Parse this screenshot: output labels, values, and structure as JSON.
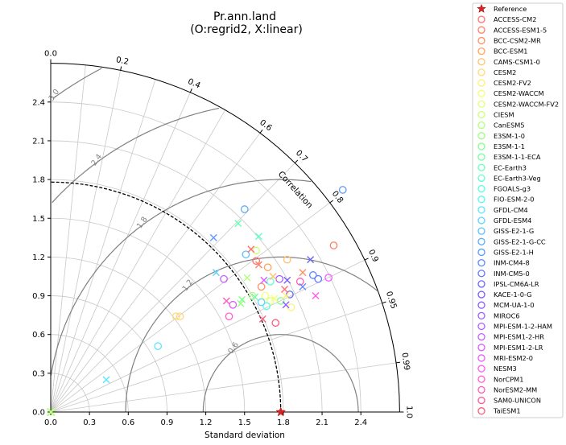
{
  "chart_data": {
    "type": "scatter",
    "subtype": "taylor-diagram",
    "title": "Pr.ann.land",
    "subtitle": "(O:regrid2, X:linear)",
    "xlabel": "Standard deviation",
    "angular_label": "Correlation",
    "xlim": [
      0,
      2.7
    ],
    "xticks": [
      "0.0",
      "0.3",
      "0.6",
      "0.9",
      "1.2",
      "1.5",
      "1.8",
      "2.1",
      "2.4"
    ],
    "yticks": [
      "0.0",
      "0.3",
      "0.6",
      "0.9",
      "1.2",
      "1.5",
      "1.8",
      "2.1",
      "2.4"
    ],
    "correlation_ticks": [
      0.0,
      0.2,
      0.4,
      0.6,
      0.7,
      0.8,
      0.9,
      0.95,
      0.99,
      1.0
    ],
    "correlation_tick_labels": [
      "0.0",
      "0.2",
      "0.4",
      "0.6",
      "0.7",
      "0.8",
      "0.9",
      "0.95",
      "0.99",
      "1.0"
    ],
    "reference_std": 1.78,
    "rms_contours": [
      0.6,
      1.2,
      1.8,
      2.4,
      3.0
    ],
    "rms_labels": [
      "0.6",
      "1.2",
      "1.8",
      "2.4",
      "3.0"
    ],
    "grid": true,
    "legend_position": "right",
    "legend": [
      {
        "name": "Reference",
        "color": "#d62728",
        "marker": "star"
      },
      {
        "name": "ACCESS-CM2",
        "color": "#ff6f6f",
        "marker": "circle"
      },
      {
        "name": "ACCESS-ESM1-5",
        "color": "#ff7f66",
        "marker": "circle"
      },
      {
        "name": "BCC-CSM2-MR",
        "color": "#ff9060",
        "marker": "circle"
      },
      {
        "name": "BCC-ESM1",
        "color": "#ffa45c",
        "marker": "circle"
      },
      {
        "name": "CAMS-CSM1-0",
        "color": "#ffc070",
        "marker": "circle"
      },
      {
        "name": "CESM2",
        "color": "#ffd97a",
        "marker": "circle"
      },
      {
        "name": "CESM2-FV2",
        "color": "#fff07a",
        "marker": "circle"
      },
      {
        "name": "CESM2-WACCM",
        "color": "#f3ff78",
        "marker": "circle"
      },
      {
        "name": "CESM2-WACCM-FV2",
        "color": "#e0ff78",
        "marker": "circle"
      },
      {
        "name": "CIESM",
        "color": "#c9ff78",
        "marker": "circle"
      },
      {
        "name": "CanESM5",
        "color": "#b0ff7a",
        "marker": "circle"
      },
      {
        "name": "E3SM-1-0",
        "color": "#98ff80",
        "marker": "circle"
      },
      {
        "name": "E3SM-1-1",
        "color": "#84ff8a",
        "marker": "circle"
      },
      {
        "name": "E3SM-1-1-ECA",
        "color": "#74ffa0",
        "marker": "circle"
      },
      {
        "name": "EC-Earth3",
        "color": "#68ffb6",
        "marker": "circle"
      },
      {
        "name": "EC-Earth3-Veg",
        "color": "#60ffcc",
        "marker": "circle"
      },
      {
        "name": "FGOALS-g3",
        "color": "#5cffe0",
        "marker": "circle"
      },
      {
        "name": "FIO-ESM-2-0",
        "color": "#5cf5f0",
        "marker": "circle"
      },
      {
        "name": "GFDL-CM4",
        "color": "#5ce6ff",
        "marker": "circle"
      },
      {
        "name": "GFDL-ESM4",
        "color": "#5cd3ff",
        "marker": "circle"
      },
      {
        "name": "GISS-E2-1-G",
        "color": "#5cc0ff",
        "marker": "circle"
      },
      {
        "name": "GISS-E2-1-G-CC",
        "color": "#5cadff",
        "marker": "circle"
      },
      {
        "name": "GISS-E2-1-H",
        "color": "#5c9aff",
        "marker": "circle"
      },
      {
        "name": "INM-CM4-8",
        "color": "#5c88ff",
        "marker": "circle"
      },
      {
        "name": "INM-CM5-0",
        "color": "#5c76ff",
        "marker": "circle"
      },
      {
        "name": "IPSL-CM6A-LR",
        "color": "#6666ff",
        "marker": "circle"
      },
      {
        "name": "KACE-1-0-G",
        "color": "#7a5cff",
        "marker": "circle"
      },
      {
        "name": "MCM-UA-1-0",
        "color": "#8c5cff",
        "marker": "circle"
      },
      {
        "name": "MIROC6",
        "color": "#a05cff",
        "marker": "circle"
      },
      {
        "name": "MPI-ESM-1-2-HAM",
        "color": "#b45cff",
        "marker": "circle"
      },
      {
        "name": "MPI-ESM1-2-HR",
        "color": "#c85cff",
        "marker": "circle"
      },
      {
        "name": "MPI-ESM1-2-LR",
        "color": "#dc5cff",
        "marker": "circle"
      },
      {
        "name": "MRI-ESM2-0",
        "color": "#ee5cff",
        "marker": "circle"
      },
      {
        "name": "NESM3",
        "color": "#ff5cf0",
        "marker": "circle"
      },
      {
        "name": "NorCPM1",
        "color": "#ff5cd6",
        "marker": "circle"
      },
      {
        "name": "NorESM2-MM",
        "color": "#ff5cb8",
        "marker": "circle"
      },
      {
        "name": "SAM0-UNICON",
        "color": "#ff5c98",
        "marker": "circle"
      },
      {
        "name": "TaiESM1",
        "color": "#ff5c7a",
        "marker": "circle"
      }
    ],
    "points_circle": [
      {
        "x": 1.59,
        "y": 1.17,
        "c": "#ff6f6f"
      },
      {
        "x": 2.19,
        "y": 1.29,
        "c": "#ff7f66"
      },
      {
        "x": 1.63,
        "y": 0.97,
        "c": "#ff9060"
      },
      {
        "x": 1.68,
        "y": 1.12,
        "c": "#ffa45c"
      },
      {
        "x": 1.83,
        "y": 1.18,
        "c": "#ffc070"
      },
      {
        "x": 0.97,
        "y": 0.74,
        "c": "#ffd97a"
      },
      {
        "x": 1.0,
        "y": 0.74,
        "c": "#ffd97a"
      },
      {
        "x": 1.86,
        "y": 0.81,
        "c": "#fff07a"
      },
      {
        "x": 1.66,
        "y": 0.9,
        "c": "#f3ff78"
      },
      {
        "x": 1.7,
        "y": 0.86,
        "c": "#e0ff78"
      },
      {
        "x": 1.59,
        "y": 1.25,
        "c": "#c9ff78"
      },
      {
        "x": 1.56,
        "y": 0.9,
        "c": "#b0ff7a"
      },
      {
        "x": 1.78,
        "y": 0.86,
        "c": "#84ff8a"
      },
      {
        "x": 1.7,
        "y": 1.01,
        "c": "#60ffcc"
      },
      {
        "x": 1.67,
        "y": 0.82,
        "c": "#5cffe0"
      },
      {
        "x": 0.83,
        "y": 0.51,
        "c": "#5ce6ff"
      },
      {
        "x": 1.63,
        "y": 0.85,
        "c": "#5cd3ff"
      },
      {
        "x": 1.51,
        "y": 1.22,
        "c": "#5cc0ff"
      },
      {
        "x": 1.5,
        "y": 1.57,
        "c": "#5cadff"
      },
      {
        "x": 2.26,
        "y": 1.72,
        "c": "#5c9aff"
      },
      {
        "x": 2.03,
        "y": 1.06,
        "c": "#5c88ff"
      },
      {
        "x": 2.07,
        "y": 1.03,
        "c": "#5c76ff"
      },
      {
        "x": 1.85,
        "y": 0.91,
        "c": "#6666ff"
      },
      {
        "x": 1.77,
        "y": 1.03,
        "c": "#a05cff"
      },
      {
        "x": 1.34,
        "y": 1.03,
        "c": "#c85cff"
      },
      {
        "x": 1.41,
        "y": 0.83,
        "c": "#dc5cff"
      },
      {
        "x": 2.15,
        "y": 1.04,
        "c": "#ee5cff"
      },
      {
        "x": 1.38,
        "y": 0.74,
        "c": "#ff5cd6"
      },
      {
        "x": 1.93,
        "y": 1.01,
        "c": "#ff5cb8"
      },
      {
        "x": 1.74,
        "y": 0.69,
        "c": "#ff5c7a"
      }
    ],
    "points_cross": [
      {
        "x": 1.55,
        "y": 1.26,
        "c": "#ff6f6f"
      },
      {
        "x": 1.61,
        "y": 1.14,
        "c": "#ff7f66"
      },
      {
        "x": 1.95,
        "y": 1.08,
        "c": "#ff9060"
      },
      {
        "x": 1.72,
        "y": 1.05,
        "c": "#ffc070"
      },
      {
        "x": 1.82,
        "y": 0.9,
        "c": "#fff07a"
      },
      {
        "x": 1.73,
        "y": 0.88,
        "c": "#f3ff78"
      },
      {
        "x": 1.52,
        "y": 1.04,
        "c": "#b0ff7a"
      },
      {
        "x": 1.47,
        "y": 0.84,
        "c": "#98ff80"
      },
      {
        "x": 1.48,
        "y": 0.87,
        "c": "#84ff8a"
      },
      {
        "x": 1.58,
        "y": 0.89,
        "c": "#74ffa0"
      },
      {
        "x": 1.45,
        "y": 1.46,
        "c": "#68ffb6"
      },
      {
        "x": 1.61,
        "y": 1.36,
        "c": "#60ffcc"
      },
      {
        "x": 0.43,
        "y": 0.25,
        "c": "#5ce6ff"
      },
      {
        "x": 1.28,
        "y": 1.08,
        "c": "#5cd3ff"
      },
      {
        "x": 1.26,
        "y": 1.35,
        "c": "#5c9aff"
      },
      {
        "x": 1.95,
        "y": 0.97,
        "c": "#5c88ff"
      },
      {
        "x": 2.01,
        "y": 1.18,
        "c": "#6666ff"
      },
      {
        "x": 1.83,
        "y": 1.02,
        "c": "#7a5cff"
      },
      {
        "x": 1.82,
        "y": 0.83,
        "c": "#8c5cff"
      },
      {
        "x": 1.65,
        "y": 1.02,
        "c": "#dc5cff"
      },
      {
        "x": 2.05,
        "y": 0.9,
        "c": "#ff5cf0"
      },
      {
        "x": 1.36,
        "y": 0.86,
        "c": "#ff5cb8"
      },
      {
        "x": 1.64,
        "y": 0.72,
        "c": "#ff5c7a"
      },
      {
        "x": 1.81,
        "y": 0.95,
        "c": "#ff6f6f"
      }
    ],
    "points_green_origin": [
      {
        "x": 0.0,
        "y": 0.0,
        "c": "#98ff80"
      },
      {
        "x": 0.005,
        "y": 0.0,
        "c": "#c9ff78"
      }
    ],
    "reference_point": {
      "x": 1.78,
      "y": 0.0,
      "c": "#d62728"
    }
  }
}
